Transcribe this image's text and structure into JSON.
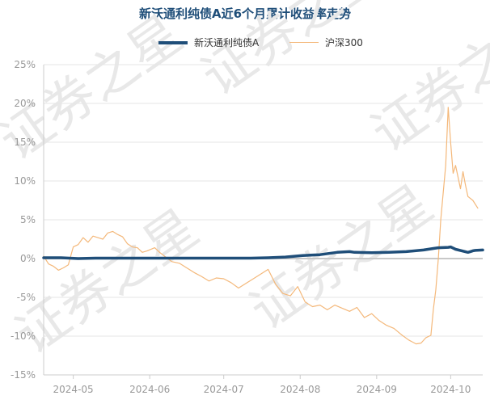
{
  "chart_data": {
    "type": "line",
    "title": "新沃通利纯债A近6个月累计收益率走势",
    "watermark": "证券之星",
    "ylim": [
      -15,
      25
    ],
    "y_ticks": [
      {
        "value": 25,
        "label": "25%"
      },
      {
        "value": 20,
        "label": "20%"
      },
      {
        "value": 15,
        "label": "15%"
      },
      {
        "value": 10,
        "label": "10%"
      },
      {
        "value": 5,
        "label": "5%"
      },
      {
        "value": 0,
        "label": "0%"
      },
      {
        "value": -5,
        "label": "-5%"
      },
      {
        "value": -10,
        "label": "-10%"
      },
      {
        "value": -15,
        "label": "-15%"
      }
    ],
    "x_range": [
      "2024-04-19",
      "2024-10-14"
    ],
    "x_ticks": [
      "2024-05",
      "2024-06",
      "2024-07",
      "2024-08",
      "2024-09",
      "2024-10"
    ],
    "legend_position": "top-center",
    "grid": true,
    "series": [
      {
        "name": "新沃通利纯债A",
        "color": "#1f4e79",
        "points": [
          [
            "2024-04-19",
            0.1
          ],
          [
            "2024-04-26",
            0.1
          ],
          [
            "2024-05-03",
            0.0
          ],
          [
            "2024-05-10",
            0.05
          ],
          [
            "2024-05-17",
            0.05
          ],
          [
            "2024-05-24",
            0.05
          ],
          [
            "2024-05-31",
            0.05
          ],
          [
            "2024-06-07",
            0.05
          ],
          [
            "2024-06-14",
            0.05
          ],
          [
            "2024-06-21",
            0.05
          ],
          [
            "2024-06-28",
            0.05
          ],
          [
            "2024-07-05",
            0.05
          ],
          [
            "2024-07-12",
            0.05
          ],
          [
            "2024-07-19",
            0.1
          ],
          [
            "2024-07-26",
            0.2
          ],
          [
            "2024-08-02",
            0.4
          ],
          [
            "2024-08-09",
            0.5
          ],
          [
            "2024-08-16",
            0.8
          ],
          [
            "2024-08-21",
            0.9
          ],
          [
            "2024-08-23",
            0.8
          ],
          [
            "2024-08-30",
            0.75
          ],
          [
            "2024-09-06",
            0.8
          ],
          [
            "2024-09-13",
            0.9
          ],
          [
            "2024-09-20",
            1.1
          ],
          [
            "2024-09-24",
            1.3
          ],
          [
            "2024-09-26",
            1.4
          ],
          [
            "2024-09-30",
            1.45
          ],
          [
            "2024-10-01",
            1.5
          ],
          [
            "2024-10-03",
            1.2
          ],
          [
            "2024-10-08",
            0.8
          ],
          [
            "2024-10-09",
            0.9
          ],
          [
            "2024-10-10",
            1.0
          ],
          [
            "2024-10-11",
            1.05
          ],
          [
            "2024-10-14",
            1.1
          ]
        ]
      },
      {
        "name": "沪深300",
        "color": "#f4b87a",
        "points": [
          [
            "2024-04-19",
            0.3
          ],
          [
            "2024-04-21",
            -0.7
          ],
          [
            "2024-04-23",
            -1.0
          ],
          [
            "2024-04-25",
            -1.5
          ],
          [
            "2024-04-27",
            -1.2
          ],
          [
            "2024-04-29",
            -0.8
          ],
          [
            "2024-05-01",
            1.5
          ],
          [
            "2024-05-03",
            1.8
          ],
          [
            "2024-05-05",
            2.7
          ],
          [
            "2024-05-07",
            2.1
          ],
          [
            "2024-05-09",
            2.9
          ],
          [
            "2024-05-11",
            2.7
          ],
          [
            "2024-05-13",
            2.5
          ],
          [
            "2024-05-15",
            3.3
          ],
          [
            "2024-05-17",
            3.5
          ],
          [
            "2024-05-19",
            3.1
          ],
          [
            "2024-05-21",
            2.8
          ],
          [
            "2024-05-23",
            1.9
          ],
          [
            "2024-05-25",
            1.5
          ],
          [
            "2024-05-27",
            1.4
          ],
          [
            "2024-05-29",
            0.8
          ],
          [
            "2024-05-31",
            1.0
          ],
          [
            "2024-06-03",
            1.4
          ],
          [
            "2024-06-05",
            0.8
          ],
          [
            "2024-06-07",
            0.3
          ],
          [
            "2024-06-10",
            -0.4
          ],
          [
            "2024-06-13",
            -0.6
          ],
          [
            "2024-06-16",
            -1.2
          ],
          [
            "2024-06-19",
            -1.8
          ],
          [
            "2024-06-22",
            -2.3
          ],
          [
            "2024-06-25",
            -2.9
          ],
          [
            "2024-06-28",
            -2.5
          ],
          [
            "2024-07-01",
            -2.6
          ],
          [
            "2024-07-04",
            -3.1
          ],
          [
            "2024-07-07",
            -3.8
          ],
          [
            "2024-07-10",
            -3.2
          ],
          [
            "2024-07-13",
            -2.6
          ],
          [
            "2024-07-16",
            -2.0
          ],
          [
            "2024-07-19",
            -1.4
          ],
          [
            "2024-07-22",
            -3.3
          ],
          [
            "2024-07-25",
            -4.5
          ],
          [
            "2024-07-28",
            -4.8
          ],
          [
            "2024-07-31",
            -3.6
          ],
          [
            "2024-08-03",
            -5.6
          ],
          [
            "2024-08-06",
            -6.2
          ],
          [
            "2024-08-09",
            -6.0
          ],
          [
            "2024-08-12",
            -6.6
          ],
          [
            "2024-08-15",
            -6.0
          ],
          [
            "2024-08-18",
            -6.4
          ],
          [
            "2024-08-21",
            -6.8
          ],
          [
            "2024-08-24",
            -6.3
          ],
          [
            "2024-08-27",
            -7.6
          ],
          [
            "2024-08-30",
            -7.1
          ],
          [
            "2024-09-02",
            -8.0
          ],
          [
            "2024-09-05",
            -8.6
          ],
          [
            "2024-09-08",
            -9.0
          ],
          [
            "2024-09-11",
            -9.8
          ],
          [
            "2024-09-14",
            -10.5
          ],
          [
            "2024-09-17",
            -11.0
          ],
          [
            "2024-09-19",
            -10.9
          ],
          [
            "2024-09-21",
            -10.2
          ],
          [
            "2024-09-23",
            -9.9
          ],
          [
            "2024-09-24",
            -6.5
          ],
          [
            "2024-09-25",
            -4.0
          ],
          [
            "2024-09-26",
            0.0
          ],
          [
            "2024-09-27",
            5.0
          ],
          [
            "2024-09-29",
            12.0
          ],
          [
            "2024-09-30",
            19.5
          ],
          [
            "2024-10-01",
            15.0
          ],
          [
            "2024-10-02",
            11.0
          ],
          [
            "2024-10-03",
            12.0
          ],
          [
            "2024-10-04",
            10.5
          ],
          [
            "2024-10-05",
            9.0
          ],
          [
            "2024-10-06",
            11.2
          ],
          [
            "2024-10-07",
            9.5
          ],
          [
            "2024-10-08",
            8.0
          ],
          [
            "2024-10-10",
            7.5
          ],
          [
            "2024-10-12",
            6.5
          ]
        ]
      }
    ]
  }
}
